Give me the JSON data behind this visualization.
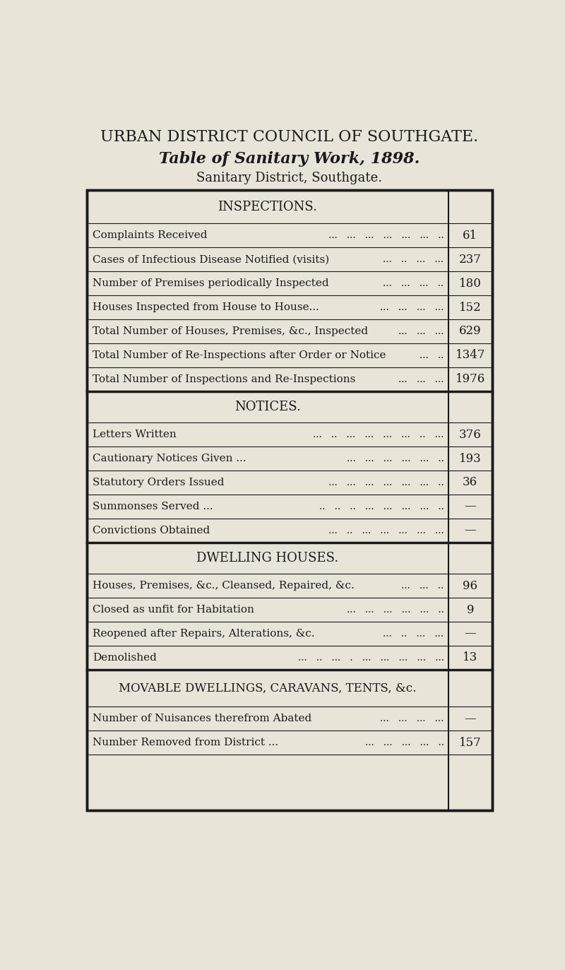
{
  "title1": "URBAN DISTRICT COUNCIL OF SOUTHGATE.",
  "title2": "Table of Sanitary Work, 1898.",
  "title3": "Sanitary District, Southgate.",
  "bg_color": "#e8e4d8",
  "text_color": "#1a1a1a",
  "sections": [
    {
      "header": "INSPECTIONS.",
      "rows": [
        {
          "label": "Complaints Received",
          "dots": "...   ...   ...   ...   ...   ...   ..",
          "value": "61"
        },
        {
          "label": "Cases of Infectious Disease Notified (visits)",
          "dots": "...   ..   ...   ...",
          "value": "237"
        },
        {
          "label": "Number of Premises periodically Inspected",
          "dots": "...   ...   ...   ..",
          "value": "180"
        },
        {
          "label": "Houses Inspected from House to House...",
          "dots": "...   ...   ...   ...",
          "value": "152"
        },
        {
          "label": "Total Number of Houses, Premises, &c., Inspected",
          "dots": "...   ...   ...",
          "value": "629"
        },
        {
          "label": "Total Number of Re-Inspections after Order or Notice",
          "dots": "...   ..",
          "value": "1347"
        },
        {
          "label": "Total Number of Inspections and Re-Inspections",
          "dots": "...   ...   ...",
          "value": "1976"
        }
      ]
    },
    {
      "header": "NOTICES.",
      "rows": [
        {
          "label": "Letters Written",
          "dots": "...   ..   ...   ...   ...   ...   ..   ...",
          "value": "376"
        },
        {
          "label": "Cautionary Notices Given ...",
          "dots": "...   ...   ...   ...   ...   ..",
          "value": "193"
        },
        {
          "label": "Statutory Orders Issued",
          "dots": "...   ...   ...   ...   ...   ...   ..",
          "value": "36"
        },
        {
          "label": "Summonses Served ...",
          "dots": "..   ..   ..   ...   ...   ...   ...   ..",
          "value": "—"
        },
        {
          "label": "Convictions Obtained",
          "dots": "...   ..   ...   ...   ...   ...   ...",
          "value": "—"
        }
      ]
    },
    {
      "header": "DWELLING HOUSES.",
      "rows": [
        {
          "label": "Houses, Premises, &c., Cleansed, Repaired, &c.",
          "dots": "...   ...   ..",
          "value": "96"
        },
        {
          "label": "Closed as unfit for Habitation",
          "dots": "...   ...   ...   ...   ...   ..",
          "value": "9"
        },
        {
          "label": "Reopened after Repairs, Alterations, &c.",
          "dots": "...   ..   ...   ...",
          "value": "—"
        },
        {
          "label": "Demolished",
          "dots": "...   ..   ...   .   ...   ...   ...   ...   ...",
          "value": "13"
        }
      ]
    },
    {
      "header": "MOVABLE DWELLINGS, CARAVANS, TENTS, &c.",
      "rows": [
        {
          "label": "Number of Nuisances therefrom Abated",
          "dots": "...   ...   ...   ...",
          "value": "—"
        },
        {
          "label": "Number Removed from District ...",
          "dots": "...   ...   ...   ...   ..",
          "value": "157"
        }
      ]
    }
  ]
}
